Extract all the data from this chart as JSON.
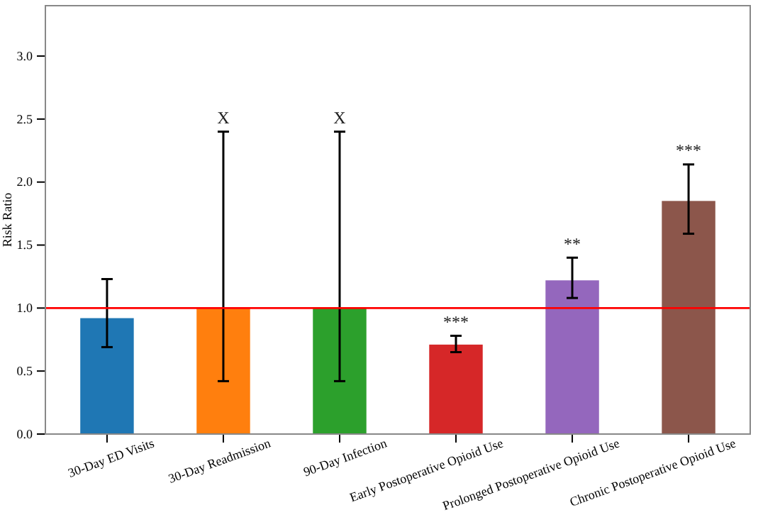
{
  "chart_data": {
    "type": "bar",
    "ylabel": "Risk Ratio",
    "categories": [
      "30-Day ED Visits",
      "30-Day Readmission",
      "90-Day Infection",
      "Early Postoperative Opioid Use",
      "Prolonged Postoperative Opioid Use",
      "Chronic Postoperative Opioid Use"
    ],
    "values": [
      0.92,
      1.0,
      1.0,
      0.71,
      1.22,
      1.85
    ],
    "colors": [
      "#1f77b4",
      "#ff7f0e",
      "#2ca02c",
      "#d62728",
      "#9467bd",
      "#8c564b"
    ],
    "errors": [
      [
        0.69,
        1.23
      ],
      [
        0.42,
        2.4
      ],
      [
        0.42,
        2.4
      ],
      [
        0.65,
        0.78
      ],
      [
        1.08,
        1.4
      ],
      [
        1.59,
        2.14
      ]
    ],
    "ylim": [
      0,
      3.4
    ],
    "yticks": [
      {
        "value": 0,
        "label": "0.0"
      },
      {
        "value": 0.5,
        "label": "0.5"
      },
      {
        "value": 1,
        "label": "1.0"
      },
      {
        "value": 1.5,
        "label": "1.5"
      },
      {
        "value": 2,
        "label": "2.0"
      },
      {
        "value": 2.5,
        "label": "2.5"
      },
      {
        "value": 3,
        "label": "3.0"
      }
    ],
    "ref_lines": [
      {
        "axis": "y",
        "value": 1,
        "color": "#ff0000"
      }
    ],
    "annotations": [
      "X",
      "X",
      "***",
      "**",
      "***"
    ],
    "grid": false
  }
}
